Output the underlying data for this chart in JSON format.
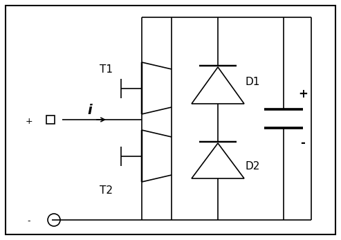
{
  "fig_width": 4.93,
  "fig_height": 3.47,
  "dpi": 100,
  "line_color": "#000000",
  "lw": 1.2,
  "border_lw": 1.5,
  "label_T1": "T1",
  "label_T2": "T2",
  "label_D1": "D1",
  "label_D2": "D2",
  "label_i": "i",
  "cap_plus": "+",
  "cap_minus": "-",
  "input_plus": "+",
  "input_minus": "-"
}
